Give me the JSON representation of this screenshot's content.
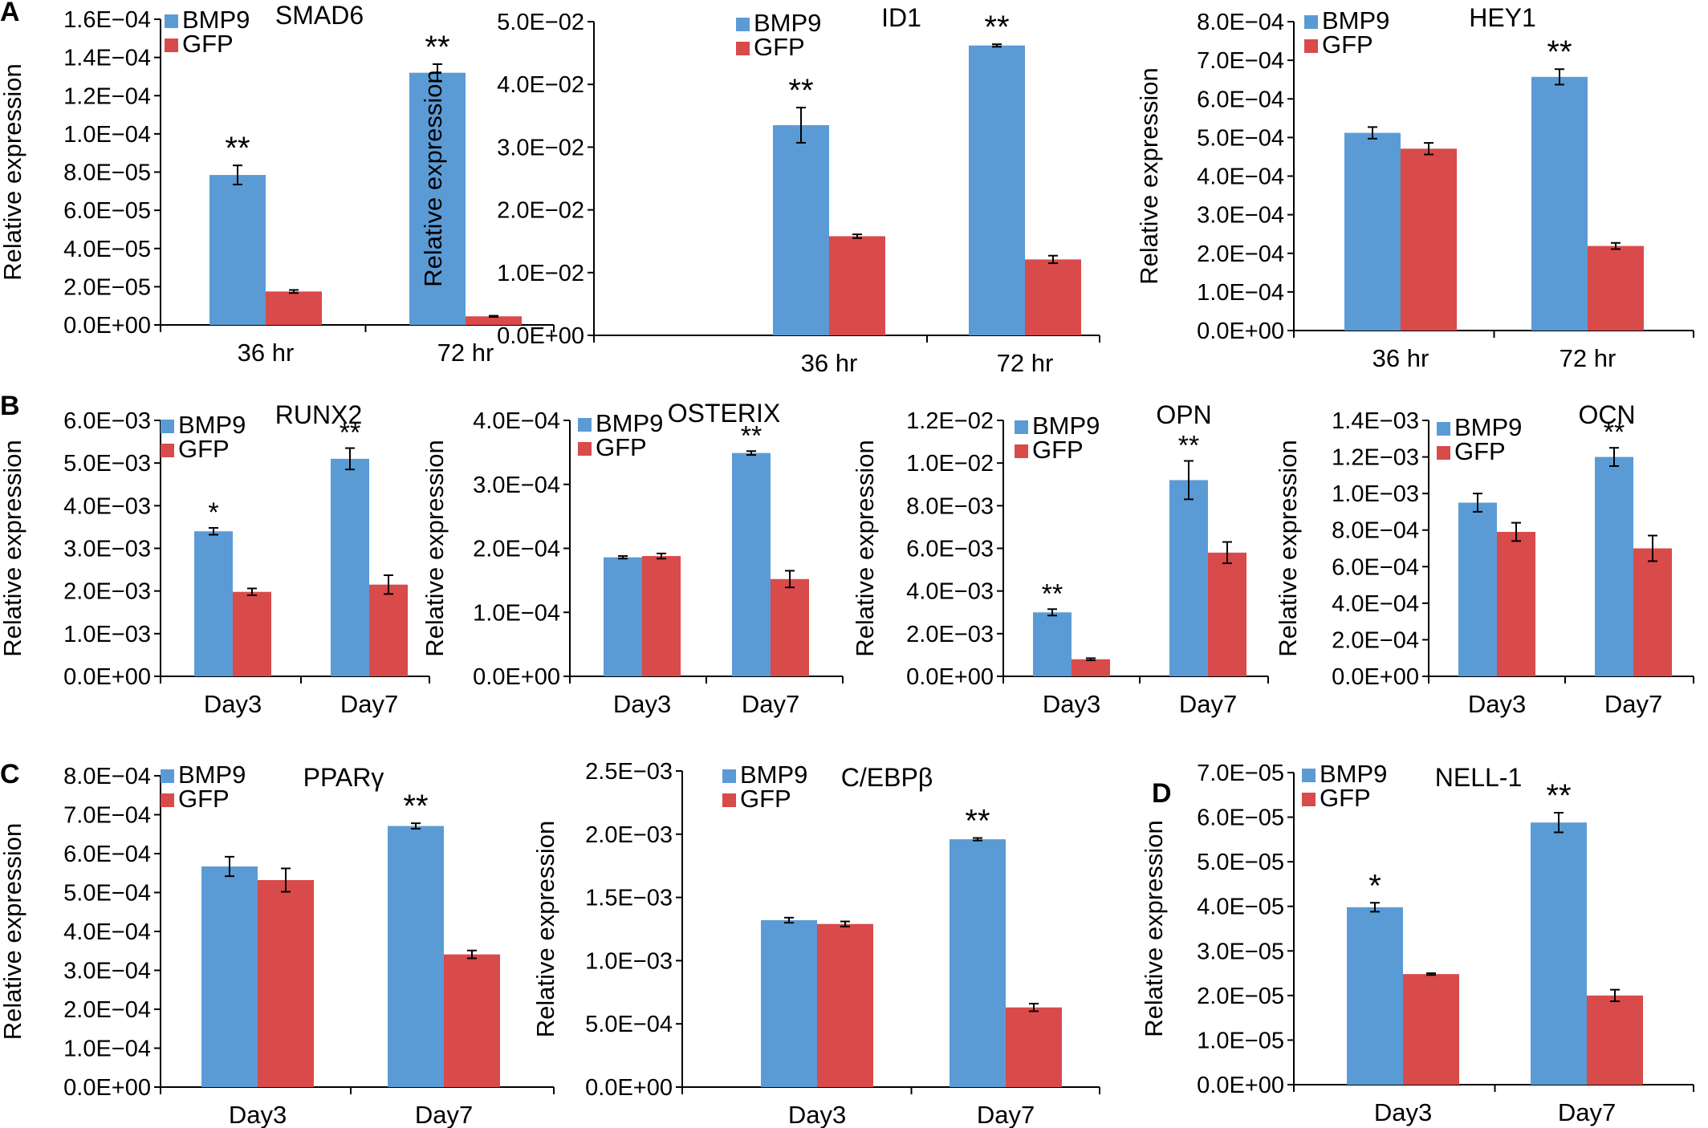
{
  "colors": {
    "bmp9": "#5b9bd5",
    "gfp": "#d94a4a",
    "axis": "#000000",
    "errorbar": "#000000"
  },
  "panel_letters": [
    "A",
    "B",
    "C",
    "D"
  ],
  "chart_data": [
    {
      "title": "SMAD6",
      "type": "bar",
      "ylabel": "Relative expression",
      "categories": [
        "36 hr",
        "72 hr"
      ],
      "ylim": [
        0,
        0.00016
      ],
      "yticks": [
        "0.0E+00",
        "2.0E−05",
        "4.0E−05",
        "6.0E−05",
        "8.0E−05",
        "1.0E−04",
        "1.2E−04",
        "1.4E−04",
        "1.6E−04"
      ],
      "series": [
        {
          "name": "BMP9",
          "values": [
            7.85e-05,
            0.000132
          ],
          "errors": [
            5e-06,
            4.5e-06
          ]
        },
        {
          "name": "GFP",
          "values": [
            1.75e-05,
            4.5e-06
          ],
          "errors": [
            8e-07,
            3e-07
          ]
        }
      ],
      "significance": [
        "**",
        "**"
      ]
    },
    {
      "title": "ID1",
      "type": "bar",
      "ylabel": "Relative expression",
      "categories": [
        "36 hr",
        "72 hr"
      ],
      "ylim": [
        0,
        0.05
      ],
      "yticks": [
        "0.0E+00",
        "1.0E−02",
        "2.0E−02",
        "3.0E−02",
        "4.0E−02",
        "5.0E−02"
      ],
      "series": [
        {
          "name": "BMP9",
          "values": [
            0.0335,
            0.0462
          ],
          "errors": [
            0.0028,
            0.0002
          ]
        },
        {
          "name": "GFP",
          "values": [
            0.0158,
            0.0121
          ],
          "errors": [
            0.0003,
            0.0006
          ]
        }
      ],
      "significance": [
        "**",
        "**"
      ]
    },
    {
      "title": "HEY1",
      "type": "bar",
      "ylabel": "Relative expression",
      "categories": [
        "36 hr",
        "72 hr"
      ],
      "ylim": [
        0,
        0.0008
      ],
      "yticks": [
        "0.0E+00",
        "1.0E−04",
        "2.0E−04",
        "3.0E−04",
        "4.0E−04",
        "5.0E−04",
        "6.0E−04",
        "7.0E−04",
        "8.0E−04"
      ],
      "series": [
        {
          "name": "BMP9",
          "values": [
            0.000512,
            0.000657
          ],
          "errors": [
            1.5e-05,
            2e-05
          ]
        },
        {
          "name": "GFP",
          "values": [
            0.000471,
            0.000219
          ],
          "errors": [
            1.5e-05,
            8e-06
          ]
        }
      ],
      "significance": [
        "",
        "**"
      ]
    },
    {
      "title": "RUNX2",
      "type": "bar",
      "ylabel": "Relative expression",
      "categories": [
        "Day3",
        "Day7"
      ],
      "ylim": [
        0,
        0.006
      ],
      "yticks": [
        "0.0E+00",
        "1.0E−03",
        "2.0E−03",
        "3.0E−03",
        "4.0E−03",
        "5.0E−03",
        "6.0E−03"
      ],
      "series": [
        {
          "name": "BMP9",
          "values": [
            0.0034,
            0.0051
          ],
          "errors": [
            8e-05,
            0.00025
          ]
        },
        {
          "name": "GFP",
          "values": [
            0.00198,
            0.00215
          ],
          "errors": [
            8e-05,
            0.00022
          ]
        }
      ],
      "significance": [
        "*",
        "**"
      ]
    },
    {
      "title": "OSTERIX",
      "type": "bar",
      "ylabel": "Relative expression",
      "categories": [
        "Day3",
        "Day7"
      ],
      "ylim": [
        0,
        0.0004
      ],
      "yticks": [
        "0.0E+00",
        "1.0E−04",
        "2.0E−04",
        "3.0E−04",
        "4.0E−04"
      ],
      "series": [
        {
          "name": "BMP9",
          "values": [
            0.000186,
            0.000349
          ],
          "errors": [
            2e-06,
            3e-06
          ]
        },
        {
          "name": "GFP",
          "values": [
            0.000188,
            0.000152
          ],
          "errors": [
            4e-06,
            1.3e-05
          ]
        }
      ],
      "significance": [
        "",
        "**"
      ]
    },
    {
      "title": "OPN",
      "type": "bar",
      "ylabel": "Relative expression",
      "categories": [
        "Day3",
        "Day7"
      ],
      "ylim": [
        0,
        0.012
      ],
      "yticks": [
        "0.0E+00",
        "2.0E−03",
        "4.0E−03",
        "6.0E−03",
        "8.0E−03",
        "1.0E−02",
        "1.2E−02"
      ],
      "series": [
        {
          "name": "BMP9",
          "values": [
            0.003,
            0.0092
          ],
          "errors": [
            0.00015,
            0.0009
          ]
        },
        {
          "name": "GFP",
          "values": [
            0.0008,
            0.0058
          ],
          "errors": [
            5e-05,
            0.0005
          ]
        }
      ],
      "significance": [
        "**",
        "**"
      ]
    },
    {
      "title": "OCN",
      "type": "bar",
      "ylabel": "Relative expression",
      "categories": [
        "Day3",
        "Day7"
      ],
      "ylim": [
        0,
        0.0014
      ],
      "yticks": [
        "0.0E+00",
        "2.0E−04",
        "4.0E−04",
        "6.0E−04",
        "8.0E−04",
        "1.0E−03",
        "1.2E−03",
        "1.4E−03"
      ],
      "series": [
        {
          "name": "BMP9",
          "values": [
            0.00095,
            0.0012
          ],
          "errors": [
            5e-05,
            5e-05
          ]
        },
        {
          "name": "GFP",
          "values": [
            0.00079,
            0.0007
          ],
          "errors": [
            5e-05,
            7e-05
          ]
        }
      ],
      "significance": [
        "",
        "**"
      ]
    },
    {
      "title": "PPARγ",
      "type": "bar",
      "ylabel": "Relative expression",
      "categories": [
        "Day3",
        "Day7"
      ],
      "ylim": [
        0,
        0.0008
      ],
      "yticks": [
        "0.0E+00",
        "1.0E−04",
        "2.0E−04",
        "3.0E−04",
        "4.0E−04",
        "5.0E−04",
        "6.0E−04",
        "7.0E−04",
        "8.0E−04"
      ],
      "series": [
        {
          "name": "BMP9",
          "values": [
            0.000567,
            0.000671
          ],
          "errors": [
            2.5e-05,
            7e-06
          ]
        },
        {
          "name": "GFP",
          "values": [
            0.000532,
            0.000341
          ],
          "errors": [
            3e-05,
            1e-05
          ]
        }
      ],
      "significance": [
        "",
        "**"
      ]
    },
    {
      "title": "C/EBPβ",
      "type": "bar",
      "ylabel": "Relative expression",
      "categories": [
        "Day3",
        "Day7"
      ],
      "ylim": [
        0,
        0.0025
      ],
      "yticks": [
        "0.0E+00",
        "5.0E−04",
        "1.0E−03",
        "1.5E−03",
        "2.0E−03",
        "2.5E−03"
      ],
      "series": [
        {
          "name": "BMP9",
          "values": [
            0.00132,
            0.00196
          ],
          "errors": [
            2e-05,
            1e-05
          ]
        },
        {
          "name": "GFP",
          "values": [
            0.00129,
            0.00063
          ],
          "errors": [
            2e-05,
            3e-05
          ]
        }
      ],
      "significance": [
        "",
        "**"
      ]
    },
    {
      "title": "NELL-1",
      "type": "bar",
      "ylabel": "Relative expression",
      "categories": [
        "Day3",
        "Day7"
      ],
      "ylim": [
        0,
        7e-05
      ],
      "yticks": [
        "0.0E+00",
        "1.0E−05",
        "2.0E−05",
        "3.0E−05",
        "4.0E−05",
        "5.0E−05",
        "6.0E−05",
        "7.0E−05"
      ],
      "series": [
        {
          "name": "BMP9",
          "values": [
            3.98e-05,
            5.88e-05
          ],
          "errors": [
            1e-06,
            2.2e-06
          ]
        },
        {
          "name": "GFP",
          "values": [
            2.48e-05,
            2e-05
          ],
          "errors": [
            2e-07,
            1.3e-06
          ]
        }
      ],
      "significance": [
        "*",
        "**"
      ]
    }
  ]
}
